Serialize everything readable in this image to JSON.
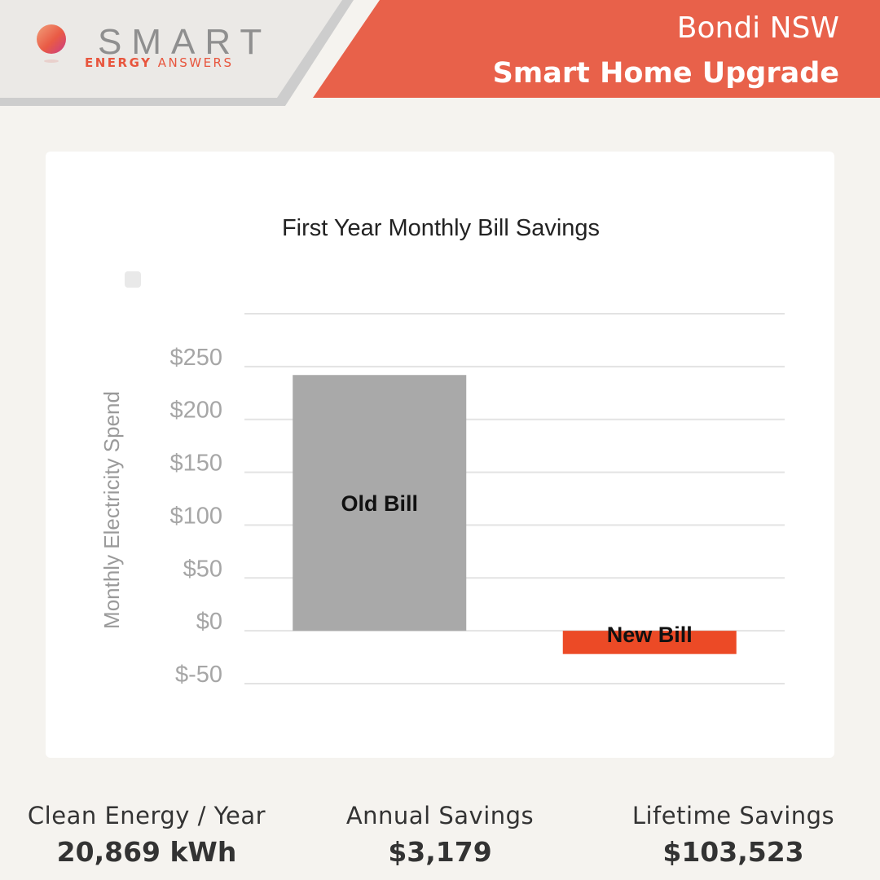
{
  "header": {
    "brand": "SMART",
    "brand_sub_1": "ENERGY",
    "brand_sub_2": "ANSWERS",
    "location": "Bondi NSW",
    "headline": "Smart Home Upgrade",
    "accent_color": "#e8614a"
  },
  "chart_data": {
    "type": "bar",
    "title": "First Year Monthly Bill Savings",
    "ylabel": "Monthly Electricity Spend",
    "xlabel": "",
    "categories": [
      "Old Bill",
      "New Bill"
    ],
    "values": [
      242,
      -22
    ],
    "colors": [
      "#a9a9a9",
      "#ec4a26"
    ],
    "ylim": [
      -50,
      300
    ],
    "yticks": [
      {
        "value": 250,
        "label": "$250"
      },
      {
        "value": 200,
        "label": "$200"
      },
      {
        "value": 150,
        "label": "$150"
      },
      {
        "value": 100,
        "label": "$100"
      },
      {
        "value": 50,
        "label": "$50"
      },
      {
        "value": 0,
        "label": "$0"
      },
      {
        "value": -50,
        "label": "$-50"
      }
    ],
    "grid": true
  },
  "stats": [
    {
      "label": "Clean Energy / Year",
      "value": "20,869 kWh"
    },
    {
      "label": "Annual Savings",
      "value": "$3,179"
    },
    {
      "label": "Lifetime Savings",
      "value": "$103,523"
    }
  ]
}
